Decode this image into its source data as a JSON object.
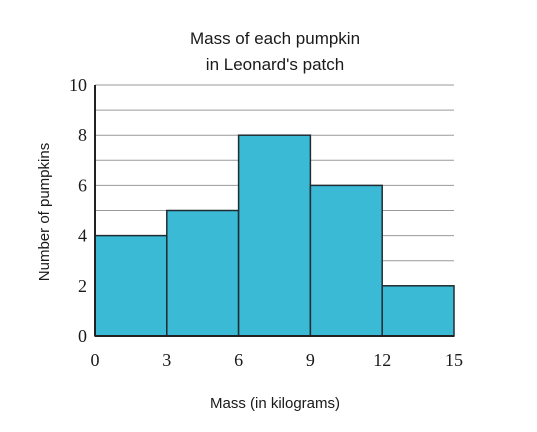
{
  "chart_data": {
    "type": "bar",
    "title_lines": [
      "Mass of each pumpkin",
      "in Leonard's patch"
    ],
    "xlabel": "Mass (in kilograms)",
    "ylabel": "Number of pumpkins",
    "bins": [
      {
        "from": 0,
        "to": 3,
        "value": 4
      },
      {
        "from": 3,
        "to": 6,
        "value": 5
      },
      {
        "from": 6,
        "to": 9,
        "value": 8
      },
      {
        "from": 9,
        "to": 12,
        "value": 6
      },
      {
        "from": 12,
        "to": 15,
        "value": 2
      }
    ],
    "x_ticks": [
      "0",
      "3",
      "6",
      "9",
      "12",
      "15"
    ],
    "y_ticks": [
      "0",
      "2",
      "4",
      "6",
      "8",
      "10"
    ],
    "xlim": [
      0,
      15
    ],
    "ylim": [
      0,
      10
    ],
    "y_grid_step": 1,
    "grid": true,
    "bar_color": "#3bbad6"
  }
}
